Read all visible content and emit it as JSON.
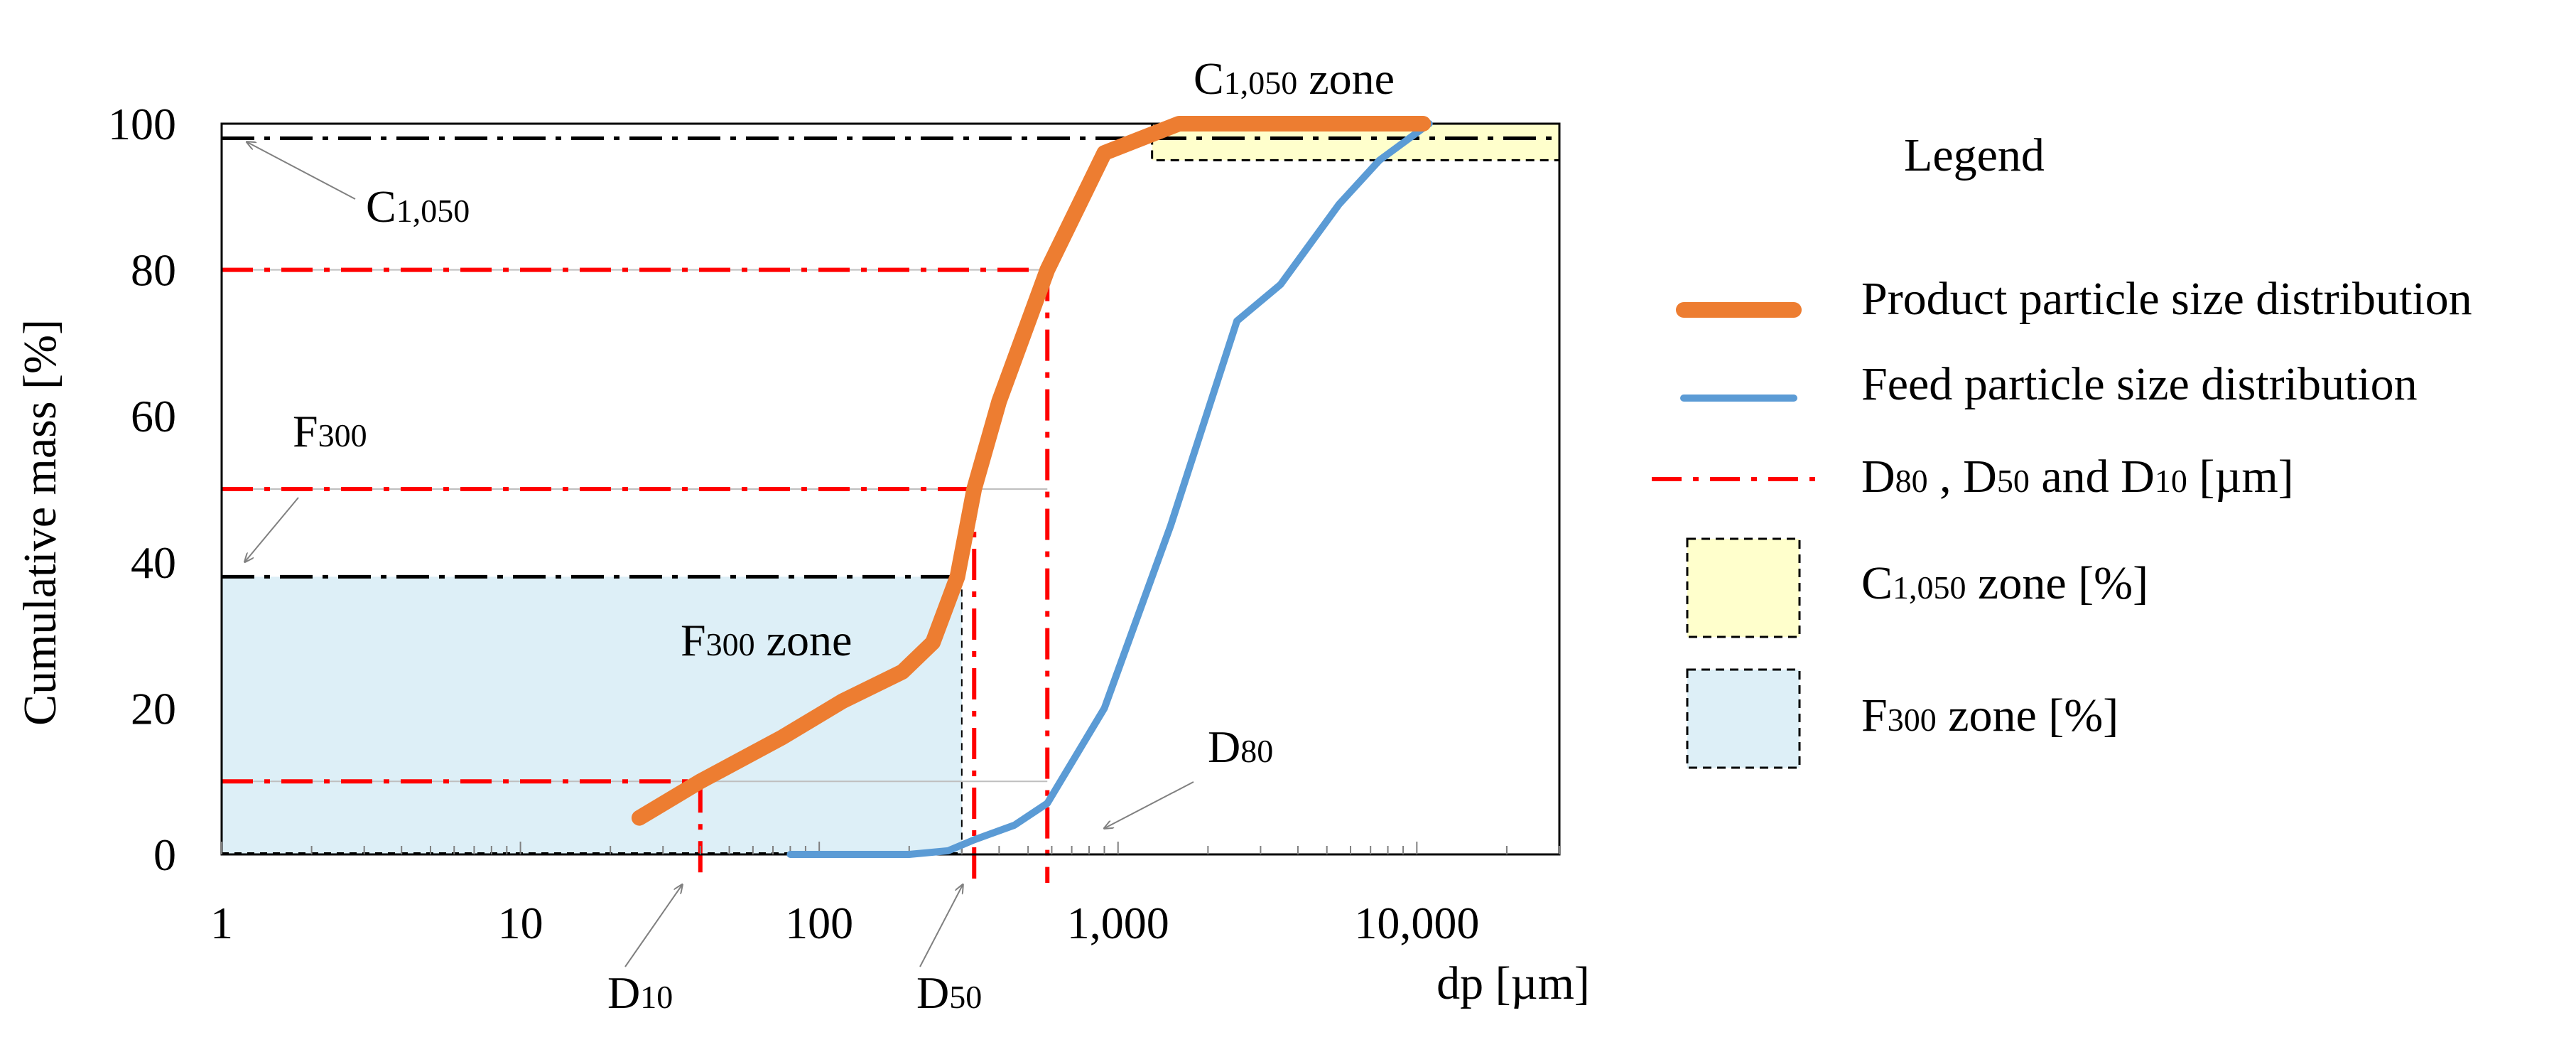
{
  "chart_data": {
    "type": "line",
    "xscale": "log",
    "xlim": [
      1,
      30000
    ],
    "ylim": [
      0,
      100
    ],
    "xlabel": "dp [µm]",
    "ylabel": "Cumulative mass [%]",
    "x_ticks": [
      {
        "value": 1,
        "label": "1"
      },
      {
        "value": 10,
        "label": "10"
      },
      {
        "value": 100,
        "label": "100"
      },
      {
        "value": 1000,
        "label": "1,000"
      },
      {
        "value": 10000,
        "label": "10,000"
      }
    ],
    "y_ticks": [
      {
        "value": 0,
        "label": "0"
      },
      {
        "value": 20,
        "label": "20"
      },
      {
        "value": 40,
        "label": "40"
      },
      {
        "value": 60,
        "label": "60"
      },
      {
        "value": 80,
        "label": "80"
      },
      {
        "value": 100,
        "label": "100"
      }
    ],
    "series": [
      {
        "name": "Product particle size distribution",
        "color": "#ED7D31",
        "points": [
          [
            25,
            5
          ],
          [
            40,
            10
          ],
          [
            75,
            16
          ],
          [
            120,
            21
          ],
          [
            190,
            25
          ],
          [
            240,
            29
          ],
          [
            290,
            38
          ],
          [
            330,
            50
          ],
          [
            400,
            62
          ],
          [
            580,
            80
          ],
          [
            900,
            96
          ],
          [
            1600,
            100
          ],
          [
            3000,
            100
          ],
          [
            6000,
            100
          ],
          [
            10500,
            100
          ]
        ]
      },
      {
        "name": "Feed particle size distribution",
        "color": "#5B9BD5",
        "points": [
          [
            80,
            0
          ],
          [
            200,
            0
          ],
          [
            270,
            0.5
          ],
          [
            330,
            2
          ],
          [
            450,
            4
          ],
          [
            580,
            7
          ],
          [
            900,
            20
          ],
          [
            1500,
            45
          ],
          [
            2500,
            73
          ],
          [
            3500,
            78
          ],
          [
            5500,
            89
          ],
          [
            7500,
            95
          ],
          [
            11000,
            100
          ]
        ]
      }
    ],
    "reference_lines": {
      "d_values_um": {
        "D10": 40,
        "D50": 330,
        "D80": 580
      },
      "d_levels_pct": {
        "D10": 10,
        "D50": 50,
        "D80": 80
      },
      "F300_pct": 38,
      "C1050_pct": 98,
      "color": "#FF0000"
    },
    "zones": {
      "F300": {
        "x_range_um": [
          1,
          300
        ],
        "y_range_pct": [
          0,
          38
        ],
        "fill": "#DDEFF7"
      },
      "C1050": {
        "x_range_um": [
          1300,
          30000
        ],
        "y_range_pct": [
          95,
          100
        ],
        "fill": "#FFFFCC"
      }
    },
    "annotations": {
      "c1050_zone": {
        "main": "C",
        "sub": "1,050",
        "suffix": " zone"
      },
      "c1050_line": {
        "main": "C",
        "sub": "1,050"
      },
      "f300_line": {
        "main": "F",
        "sub": "300"
      },
      "f300_zone": {
        "main": "F",
        "sub": "300",
        "suffix": " zone"
      },
      "d10": {
        "main": "D",
        "sub": "10"
      },
      "d50": {
        "main": "D",
        "sub": "50"
      },
      "d80": {
        "main": "D",
        "sub": "80"
      }
    },
    "legend": {
      "title": "Legend",
      "position": "right",
      "product": "Product particle size distribution",
      "feed": "Feed particle size distribution",
      "d_lines": {
        "d80": "80",
        "sep1": " , ",
        "d50": "50",
        "and": " and ",
        "d10": "10",
        "unit": " [µm]",
        "letter": "D"
      },
      "c_zone": {
        "main": "C",
        "sub": "1,050",
        "suffix": " zone [%]"
      },
      "f_zone": {
        "main": "F",
        "sub": "300",
        "suffix": " zone [%]"
      }
    }
  }
}
